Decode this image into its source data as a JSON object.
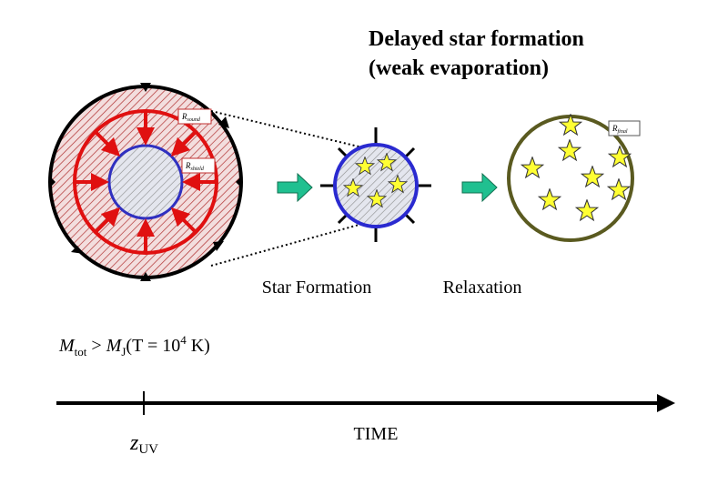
{
  "title": {
    "line1": "Delayed star formation",
    "line2": "(weak evaporation)"
  },
  "labels": {
    "sound": {
      "main": "R",
      "sub": "sound"
    },
    "shield": {
      "main": "R",
      "sub": "shield"
    },
    "final": {
      "main": "R",
      "sub": "final"
    }
  },
  "stages": {
    "star_formation": "Star Formation",
    "relaxation": "Relaxation"
  },
  "condition": {
    "m1": "M",
    "s1": "tot",
    "op": " > ",
    "m2": "M",
    "s2": "J",
    "open": "(T = 10",
    "sup": "4",
    "close": " K)"
  },
  "timeline": {
    "marker": {
      "main": "z",
      "sub": "UV"
    },
    "axis_label": "TIME"
  }
}
